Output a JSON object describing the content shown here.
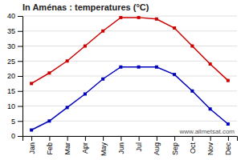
{
  "chart_data": {
    "type": "line",
    "title": "In Aménas : temperatures (°C)",
    "categories": [
      "Jan",
      "Feb",
      "Mar",
      "Apr",
      "May",
      "Jun",
      "Jul",
      "Aug",
      "Sep",
      "Oct",
      "Nov",
      "Dec"
    ],
    "series": [
      {
        "color": "#cc0000",
        "marker": "square",
        "line_style": "solid",
        "values": [
          17.5,
          21,
          25,
          30,
          35,
          39.5,
          39.5,
          39,
          36,
          30,
          24,
          18.5
        ]
      },
      {
        "color": "#0000bb",
        "marker": "square",
        "line_style": "solid",
        "values": [
          2,
          5,
          9.5,
          14,
          19,
          23,
          23,
          23,
          20.5,
          15,
          9,
          4
        ]
      }
    ],
    "ylim": [
      0,
      40
    ],
    "yticks": [
      0,
      5,
      10,
      15,
      20,
      25,
      30,
      35,
      40
    ],
    "grid": true,
    "annotations": [
      "www.allmetsat.com"
    ]
  }
}
